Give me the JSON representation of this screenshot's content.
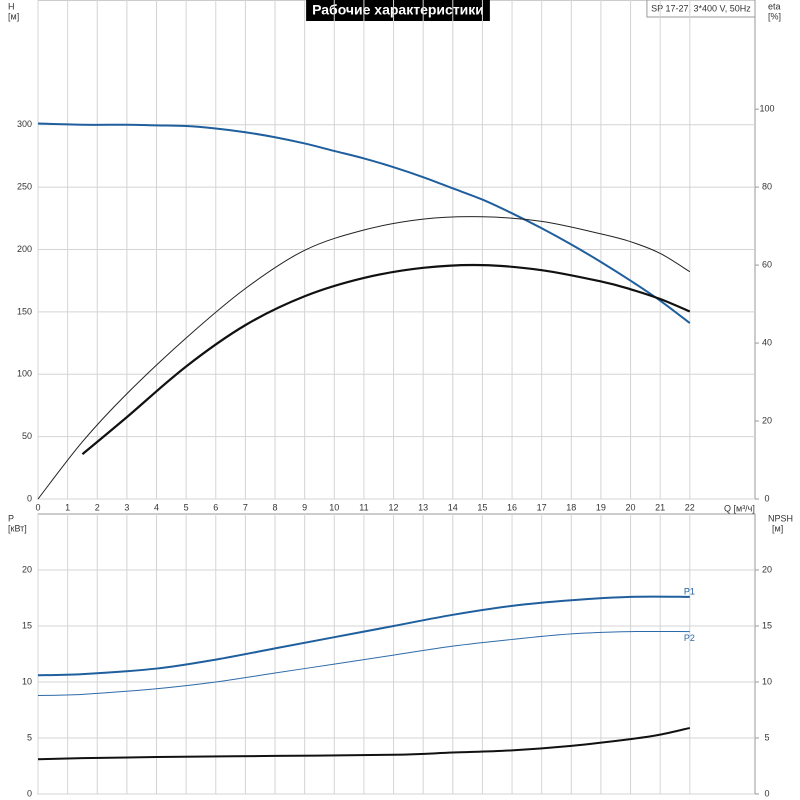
{
  "chart_data": [
    {
      "type": "line",
      "title": "Рабочие характеристики",
      "subtitle": "SP 17-27, 3*400 V, 50Hz",
      "x_label": "Q [м³/ч]",
      "y_label": "H",
      "y_unit": "[м]",
      "y2_label": "eta",
      "y2_unit": "[%]",
      "xlim": [
        0,
        24.2
      ],
      "ylim": [
        0,
        400
      ],
      "y2lim": [
        0,
        128
      ],
      "grid": true,
      "xticks": [
        0,
        1,
        2,
        3,
        4,
        5,
        6,
        7,
        8,
        9,
        10,
        11,
        12,
        13,
        14,
        15,
        16,
        17,
        18,
        19,
        20,
        21,
        22
      ],
      "yticks": [
        0,
        50,
        100,
        150,
        200,
        250,
        300
      ],
      "y2ticks": [
        0,
        20,
        40,
        60,
        80,
        100
      ],
      "series": [
        {
          "color": "#1f5f9e",
          "width": 2,
          "x": [
            0,
            1.5,
            3,
            4,
            5,
            6,
            7,
            8,
            9,
            10,
            11,
            12,
            13,
            14,
            15,
            16,
            17,
            18,
            19,
            20,
            21,
            22
          ],
          "values": [
            301,
            300,
            300,
            299.5,
            299,
            297,
            294,
            290,
            285,
            279,
            273,
            266,
            258,
            249,
            240,
            229,
            217,
            204,
            190,
            175,
            159,
            141
          ]
        },
        {
          "color": "#222222",
          "width": 1,
          "axis": "y2",
          "x": [
            0,
            1.5,
            3,
            5,
            7,
            9,
            11,
            13,
            15,
            17,
            19,
            20,
            21,
            22
          ],
          "values": [
            0,
            14.7,
            27,
            41.3,
            54,
            63.8,
            69,
            71.8,
            72.4,
            71.2,
            68,
            66,
            63,
            58.3
          ]
        },
        {
          "color": "#111111",
          "width": 2.2,
          "axis": "y2",
          "x": [
            1.5,
            3,
            5,
            7,
            9,
            11,
            13,
            15,
            17,
            19,
            20,
            21,
            22
          ],
          "values": [
            11.5,
            21,
            34,
            44.6,
            52,
            56.7,
            59.3,
            60,
            58.7,
            55.8,
            53.8,
            51.3,
            48.1
          ]
        }
      ]
    },
    {
      "type": "line",
      "y_label": "P",
      "y_unit": "[кВт]",
      "y2_label": "NPSH",
      "y2_unit": "[м]",
      "xlim": [
        0,
        24.2
      ],
      "ylim": [
        0,
        25
      ],
      "y2lim": [
        0,
        25
      ],
      "grid": true,
      "yticks": [
        0,
        5,
        10,
        15,
        20
      ],
      "y2ticks": [
        0,
        5,
        10,
        15,
        20
      ],
      "series": [
        {
          "name": "P1",
          "color": "#1f5f9e",
          "width": 2,
          "x": [
            0,
            1.5,
            4,
            6,
            8,
            10,
            12,
            14,
            16,
            18,
            20,
            22
          ],
          "values": [
            10.6,
            10.7,
            11.2,
            12,
            13,
            14,
            15,
            16,
            16.8,
            17.3,
            17.6,
            17.6
          ]
        },
        {
          "name": "P2",
          "color": "#2e6aa8",
          "width": 1,
          "x": [
            0,
            1.5,
            4,
            6,
            8,
            10,
            12,
            14,
            16,
            18,
            20,
            22
          ],
          "values": [
            8.8,
            8.9,
            9.4,
            10,
            10.8,
            11.6,
            12.4,
            13.2,
            13.8,
            14.3,
            14.5,
            14.5
          ]
        },
        {
          "color": "#111111",
          "width": 2,
          "axis": "y2",
          "x": [
            0,
            1.5,
            4,
            8,
            12,
            14,
            16,
            18,
            20,
            21,
            22
          ],
          "values": [
            3.1,
            3.2,
            3.3,
            3.4,
            3.5,
            3.7,
            3.9,
            4.3,
            4.9,
            5.3,
            5.9
          ]
        }
      ]
    }
  ]
}
